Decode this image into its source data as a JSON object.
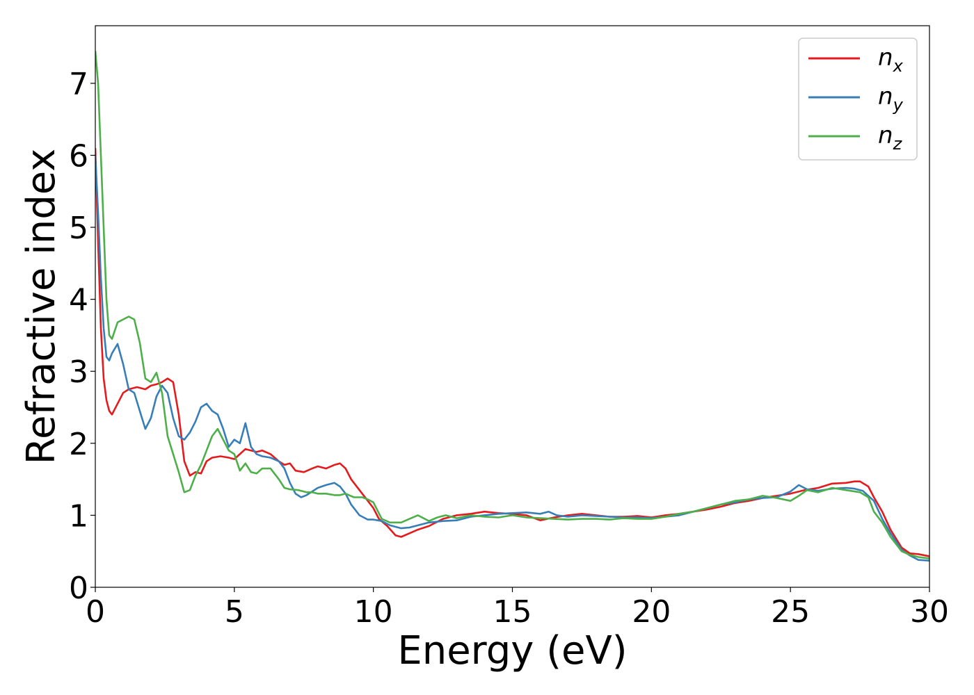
{
  "chart_data": {
    "type": "line",
    "title": "",
    "xlabel": "Energy (eV)",
    "ylabel": "Refractive index",
    "xlim": [
      0,
      30
    ],
    "ylim": [
      0,
      7.8
    ],
    "xticks": [
      0,
      5,
      10,
      15,
      20,
      25,
      30
    ],
    "yticks": [
      0,
      1,
      2,
      3,
      4,
      5,
      6,
      7
    ],
    "grid": false,
    "legend_position": "top-right",
    "series": [
      {
        "name": "x",
        "legend_base": "n",
        "legend_sub": "x",
        "color": "#e41a1c",
        "x": [
          0,
          0.1,
          0.2,
          0.3,
          0.4,
          0.5,
          0.6,
          0.8,
          1.0,
          1.2,
          1.5,
          1.8,
          2.0,
          2.2,
          2.4,
          2.6,
          2.8,
          3.0,
          3.2,
          3.4,
          3.6,
          3.8,
          4.0,
          4.2,
          4.5,
          4.8,
          5.0,
          5.2,
          5.4,
          5.6,
          5.8,
          6.0,
          6.3,
          6.6,
          6.8,
          7.0,
          7.2,
          7.5,
          7.8,
          8.0,
          8.3,
          8.6,
          8.8,
          9.0,
          9.2,
          9.5,
          9.8,
          10.0,
          10.2,
          10.5,
          10.8,
          11.0,
          11.3,
          11.6,
          12.0,
          12.5,
          13.0,
          13.5,
          14.0,
          14.5,
          15.0,
          15.5,
          16.0,
          16.5,
          17.0,
          17.5,
          18.0,
          18.5,
          19.0,
          19.5,
          20.0,
          20.5,
          21.0,
          21.5,
          22.0,
          22.5,
          23.0,
          23.5,
          24.0,
          24.5,
          25.0,
          25.5,
          26.0,
          26.5,
          27.0,
          27.3,
          27.5,
          27.8,
          28.0,
          28.3,
          28.6,
          29.0,
          29.3,
          29.6,
          30.0
        ],
        "y": [
          6.1,
          4.8,
          3.6,
          2.9,
          2.6,
          2.45,
          2.4,
          2.55,
          2.7,
          2.75,
          2.78,
          2.75,
          2.8,
          2.82,
          2.85,
          2.9,
          2.85,
          2.4,
          1.75,
          1.55,
          1.6,
          1.58,
          1.75,
          1.8,
          1.82,
          1.8,
          1.78,
          1.85,
          1.92,
          1.9,
          1.88,
          1.9,
          1.85,
          1.75,
          1.7,
          1.72,
          1.62,
          1.6,
          1.65,
          1.68,
          1.65,
          1.7,
          1.72,
          1.65,
          1.5,
          1.35,
          1.2,
          1.1,
          0.95,
          0.85,
          0.72,
          0.7,
          0.75,
          0.8,
          0.85,
          0.95,
          1.0,
          1.02,
          1.05,
          1.03,
          1.02,
          1.0,
          0.93,
          0.97,
          1.0,
          1.02,
          1.0,
          0.98,
          0.98,
          0.99,
          0.97,
          1.0,
          1.02,
          1.05,
          1.08,
          1.12,
          1.17,
          1.2,
          1.24,
          1.27,
          1.3,
          1.35,
          1.38,
          1.44,
          1.45,
          1.47,
          1.47,
          1.4,
          1.25,
          1.05,
          0.8,
          0.55,
          0.47,
          0.46,
          0.43
        ]
      },
      {
        "name": "y",
        "legend_base": "n",
        "legend_sub": "y",
        "color": "#377eb8",
        "x": [
          0,
          0.1,
          0.2,
          0.3,
          0.4,
          0.5,
          0.6,
          0.8,
          1.0,
          1.2,
          1.4,
          1.6,
          1.8,
          2.0,
          2.2,
          2.4,
          2.6,
          2.8,
          3.0,
          3.2,
          3.4,
          3.6,
          3.8,
          4.0,
          4.2,
          4.4,
          4.6,
          4.8,
          5.0,
          5.2,
          5.4,
          5.6,
          5.8,
          6.0,
          6.3,
          6.6,
          6.8,
          7.0,
          7.2,
          7.4,
          7.6,
          7.8,
          8.0,
          8.3,
          8.6,
          8.8,
          9.0,
          9.2,
          9.5,
          9.8,
          10.0,
          10.3,
          10.6,
          11.0,
          11.3,
          11.6,
          12.0,
          12.5,
          13.0,
          13.5,
          14.0,
          14.5,
          15.0,
          15.5,
          16.0,
          16.3,
          16.6,
          17.0,
          17.5,
          18.0,
          18.5,
          19.0,
          19.5,
          20.0,
          20.5,
          21.0,
          21.5,
          22.0,
          22.5,
          23.0,
          23.5,
          24.0,
          24.5,
          25.0,
          25.3,
          25.6,
          26.0,
          26.5,
          27.0,
          27.3,
          27.6,
          28.0,
          28.3,
          28.6,
          29.0,
          29.3,
          29.6,
          30.0
        ],
        "y": [
          6.0,
          5.2,
          4.3,
          3.6,
          3.2,
          3.15,
          3.25,
          3.38,
          3.1,
          2.75,
          2.7,
          2.45,
          2.2,
          2.35,
          2.65,
          2.8,
          2.7,
          2.35,
          2.1,
          2.05,
          2.15,
          2.3,
          2.5,
          2.55,
          2.45,
          2.4,
          2.2,
          1.95,
          2.05,
          2.0,
          2.28,
          1.95,
          1.85,
          1.82,
          1.8,
          1.75,
          1.65,
          1.45,
          1.3,
          1.25,
          1.28,
          1.33,
          1.38,
          1.42,
          1.45,
          1.4,
          1.3,
          1.15,
          1.0,
          0.94,
          0.94,
          0.92,
          0.86,
          0.82,
          0.83,
          0.86,
          0.9,
          0.92,
          0.93,
          0.98,
          1.0,
          1.02,
          1.03,
          1.04,
          1.02,
          1.05,
          1.0,
          0.98,
          1.0,
          0.99,
          0.98,
          0.97,
          0.97,
          0.96,
          0.98,
          1.0,
          1.05,
          1.1,
          1.15,
          1.18,
          1.22,
          1.24,
          1.25,
          1.33,
          1.42,
          1.36,
          1.34,
          1.37,
          1.38,
          1.37,
          1.34,
          1.2,
          0.95,
          0.75,
          0.52,
          0.44,
          0.38,
          0.37
        ]
      },
      {
        "name": "z",
        "legend_base": "n",
        "legend_sub": "z",
        "color": "#4daf4a",
        "x": [
          0,
          0.1,
          0.2,
          0.3,
          0.4,
          0.5,
          0.6,
          0.8,
          1.0,
          1.2,
          1.4,
          1.6,
          1.8,
          2.0,
          2.2,
          2.4,
          2.6,
          2.8,
          3.0,
          3.2,
          3.4,
          3.6,
          3.8,
          4.0,
          4.2,
          4.4,
          4.6,
          4.8,
          5.0,
          5.2,
          5.4,
          5.6,
          5.8,
          6.0,
          6.3,
          6.6,
          6.8,
          7.0,
          7.3,
          7.6,
          7.8,
          8.0,
          8.3,
          8.6,
          8.8,
          9.0,
          9.3,
          9.6,
          9.8,
          10.0,
          10.3,
          10.6,
          11.0,
          11.3,
          11.6,
          12.0,
          12.3,
          12.6,
          13.0,
          13.5,
          14.0,
          14.5,
          15.0,
          15.5,
          16.0,
          16.5,
          17.0,
          17.5,
          18.0,
          18.5,
          19.0,
          19.5,
          20.0,
          20.5,
          21.0,
          21.5,
          22.0,
          22.5,
          23.0,
          23.5,
          24.0,
          24.5,
          25.0,
          25.3,
          25.6,
          26.0,
          26.5,
          27.0,
          27.5,
          27.8,
          28.0,
          28.3,
          28.6,
          29.0,
          29.3,
          29.6,
          30.0
        ],
        "y": [
          7.45,
          7.0,
          6.0,
          5.0,
          4.0,
          3.5,
          3.45,
          3.68,
          3.72,
          3.76,
          3.72,
          3.4,
          2.9,
          2.85,
          2.98,
          2.7,
          2.1,
          1.85,
          1.6,
          1.32,
          1.35,
          1.55,
          1.7,
          1.9,
          2.1,
          2.2,
          2.05,
          1.9,
          1.85,
          1.62,
          1.72,
          1.6,
          1.58,
          1.65,
          1.65,
          1.5,
          1.38,
          1.36,
          1.35,
          1.32,
          1.32,
          1.3,
          1.3,
          1.28,
          1.28,
          1.3,
          1.25,
          1.25,
          1.22,
          1.18,
          0.95,
          0.9,
          0.9,
          0.95,
          1.0,
          0.92,
          0.97,
          1.0,
          0.96,
          1.0,
          0.98,
          0.97,
          1.0,
          0.97,
          0.96,
          0.95,
          0.94,
          0.95,
          0.95,
          0.94,
          0.96,
          0.95,
          0.95,
          0.98,
          1.02,
          1.05,
          1.1,
          1.15,
          1.2,
          1.22,
          1.27,
          1.24,
          1.2,
          1.27,
          1.35,
          1.32,
          1.38,
          1.35,
          1.32,
          1.25,
          1.05,
          0.9,
          0.7,
          0.5,
          0.45,
          0.42,
          0.4
        ]
      }
    ]
  }
}
